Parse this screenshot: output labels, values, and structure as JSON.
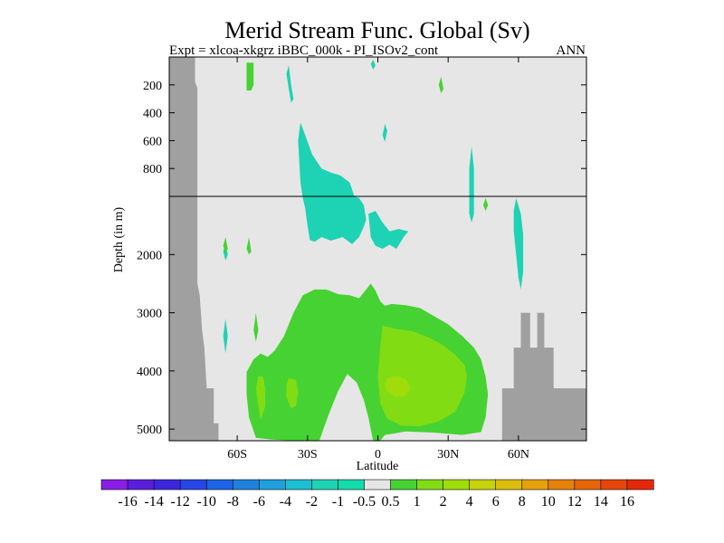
{
  "chart_data": {
    "type": "heatmap",
    "title": "Merid Stream Func. Global (Sv)",
    "subtitle_left": "Expt = xlcoa-xkgrz  iBBC_000k - PI_ISOv2_cont",
    "subtitle_right": "ANN",
    "xlabel": "Latitude",
    "ylabel": "Depth (in m)",
    "xlim": [
      -89,
      89
    ],
    "ylim_upper": [
      0,
      1000
    ],
    "ylim_lower": [
      1000,
      5200
    ],
    "x_ticks": [
      {
        "value": -60,
        "label": "60S"
      },
      {
        "value": -30,
        "label": "30S"
      },
      {
        "value": 0,
        "label": "0"
      },
      {
        "value": 30,
        "label": "30N"
      },
      {
        "value": 60,
        "label": "60N"
      }
    ],
    "y_ticks_upper": [
      {
        "value": 200,
        "label": "200"
      },
      {
        "value": 400,
        "label": "400"
      },
      {
        "value": 600,
        "label": "600"
      },
      {
        "value": 800,
        "label": "800"
      }
    ],
    "y_ticks_lower": [
      {
        "value": 2000,
        "label": "2000"
      },
      {
        "value": 3000,
        "label": "3000"
      },
      {
        "value": 4000,
        "label": "4000"
      },
      {
        "value": 5000,
        "label": "5000"
      }
    ],
    "background_color": "#e6e6e6",
    "land_color": "#a0a0a0",
    "colorbar": {
      "labels": [
        "-16",
        "-14",
        "-12",
        "-10",
        "-8",
        "-6",
        "-4",
        "-2",
        "-1",
        "-0.5",
        "0.5",
        "1",
        "2",
        "4",
        "6",
        "8",
        "10",
        "12",
        "14",
        "16"
      ],
      "colors": [
        "#8a1ee6",
        "#5a1edc",
        "#3c28dc",
        "#2846e6",
        "#1e64e6",
        "#1e82dc",
        "#1ea0dc",
        "#1ebed2",
        "#1ed2b4",
        "#14dcaa",
        "#e6e6e6",
        "#46d232",
        "#82dc14",
        "#a0dc0a",
        "#c8d20a",
        "#dcbe0a",
        "#e6a00a",
        "#e6820a",
        "#e6640a",
        "#e6460a",
        "#e6280a"
      ]
    },
    "regions": [
      {
        "value": -1.5,
        "color": "#1ed2b4",
        "points": [
          [
            -32,
            1030
          ],
          [
            -31,
            1200
          ],
          [
            -30,
            1500
          ],
          [
            -29,
            1750
          ],
          [
            -27,
            1780
          ],
          [
            -24,
            1700
          ],
          [
            -20,
            1760
          ],
          [
            -15,
            1700
          ],
          [
            -11,
            1820
          ],
          [
            -8,
            1700
          ],
          [
            -6,
            1520
          ],
          [
            -5,
            1400
          ],
          [
            -6,
            1150
          ],
          [
            -8,
            1030
          ],
          [
            -10,
            1000
          ],
          [
            -12,
            900
          ],
          [
            -16,
            850
          ],
          [
            -20,
            830
          ],
          [
            -24,
            800
          ],
          [
            -28,
            700
          ],
          [
            -31,
            560
          ],
          [
            -33,
            470
          ],
          [
            -34,
            600
          ],
          [
            -33,
            900
          ]
        ]
      },
      {
        "value": -1.5,
        "color": "#1ed2b4",
        "points": [
          [
            -4,
            1300
          ],
          [
            -3,
            1700
          ],
          [
            -1,
            1850
          ],
          [
            2,
            1900
          ],
          [
            5,
            1830
          ],
          [
            8,
            1900
          ],
          [
            11,
            1700
          ],
          [
            13,
            1600
          ],
          [
            9,
            1560
          ],
          [
            5,
            1600
          ],
          [
            2,
            1450
          ],
          [
            -1,
            1250
          ]
        ]
      },
      {
        "value": -1.5,
        "color": "#1ed2b4",
        "points": [
          [
            -38,
            60
          ],
          [
            -37,
            200
          ],
          [
            -36,
            300
          ],
          [
            -37,
            330
          ],
          [
            -38,
            230
          ],
          [
            -39,
            120
          ]
        ]
      },
      {
        "value": -1.5,
        "color": "#1ed2b4",
        "points": [
          [
            3,
            480
          ],
          [
            4,
            530
          ],
          [
            3,
            610
          ],
          [
            2,
            560
          ]
        ]
      },
      {
        "value": -1.5,
        "color": "#1ed2b4",
        "points": [
          [
            -2,
            20
          ],
          [
            -1,
            60
          ],
          [
            -2,
            90
          ],
          [
            -3,
            50
          ]
        ]
      },
      {
        "value": -1.5,
        "color": "#1ed2b4",
        "points": [
          [
            40,
            640
          ],
          [
            41,
            800
          ],
          [
            41,
            1000
          ],
          [
            41,
            1300
          ],
          [
            40,
            1450
          ],
          [
            39,
            1300
          ],
          [
            39,
            1000
          ],
          [
            39,
            800
          ]
        ]
      },
      {
        "value": -1.5,
        "color": "#1ed2b4",
        "points": [
          [
            59,
            1030
          ],
          [
            61,
            1300
          ],
          [
            62,
            1650
          ],
          [
            62,
            2300
          ],
          [
            61,
            2600
          ],
          [
            60,
            2400
          ],
          [
            59,
            2000
          ],
          [
            58,
            1600
          ],
          [
            58,
            1250
          ]
        ]
      },
      {
        "value": -1.5,
        "color": "#1ed2b4",
        "points": [
          [
            -65,
            3100
          ],
          [
            -64,
            3400
          ],
          [
            -65,
            3700
          ],
          [
            -66,
            3400
          ]
        ]
      },
      {
        "value": -1.5,
        "color": "#1ed2b4",
        "points": [
          [
            -65,
            1800
          ],
          [
            -64,
            2000
          ],
          [
            -65,
            2100
          ],
          [
            -66,
            1950
          ]
        ]
      },
      {
        "value": 0.75,
        "color": "#46d232",
        "points": [
          [
            -56,
            4020
          ],
          [
            -53,
            3800
          ],
          [
            -50,
            3700
          ],
          [
            -47,
            3760
          ],
          [
            -44,
            3650
          ],
          [
            -40,
            3400
          ],
          [
            -36,
            3000
          ],
          [
            -32,
            2700
          ],
          [
            -27,
            2600
          ],
          [
            -22,
            2600
          ],
          [
            -17,
            2680
          ],
          [
            -12,
            2700
          ],
          [
            -8,
            2750
          ],
          [
            -5,
            2600
          ],
          [
            -4,
            2550
          ],
          [
            -3,
            2500
          ],
          [
            -1,
            2620
          ],
          [
            1,
            2800
          ],
          [
            3,
            2880
          ],
          [
            6,
            2850
          ],
          [
            12,
            2870
          ],
          [
            18,
            2920
          ],
          [
            24,
            3060
          ],
          [
            30,
            3200
          ],
          [
            36,
            3400
          ],
          [
            41,
            3600
          ],
          [
            44,
            3800
          ],
          [
            46,
            4100
          ],
          [
            47,
            4400
          ],
          [
            46,
            4800
          ],
          [
            44,
            5050
          ],
          [
            36,
            5100
          ],
          [
            24,
            5060
          ],
          [
            12,
            5040
          ],
          [
            3,
            5100
          ],
          [
            1,
            5200
          ],
          [
            -2,
            5200
          ],
          [
            -4,
            4800
          ],
          [
            -6,
            4500
          ],
          [
            -9,
            4200
          ],
          [
            -13,
            4050
          ],
          [
            -17,
            4350
          ],
          [
            -21,
            4750
          ],
          [
            -25,
            5200
          ],
          [
            -35,
            5200
          ],
          [
            -45,
            5180
          ],
          [
            -52,
            5150
          ],
          [
            -55,
            4800
          ],
          [
            -56,
            4400
          ]
        ]
      },
      {
        "value": 1.5,
        "color": "#82dc14",
        "points": [
          [
            2,
            3220
          ],
          [
            8,
            3280
          ],
          [
            15,
            3320
          ],
          [
            22,
            3430
          ],
          [
            28,
            3560
          ],
          [
            33,
            3720
          ],
          [
            37,
            3900
          ],
          [
            38,
            4100
          ],
          [
            37,
            4380
          ],
          [
            33,
            4700
          ],
          [
            26,
            4870
          ],
          [
            18,
            4950
          ],
          [
            10,
            4940
          ],
          [
            4,
            4820
          ],
          [
            1,
            4550
          ],
          [
            0,
            4100
          ],
          [
            1,
            3600
          ]
        ]
      },
      {
        "value": 1.5,
        "color": "#82dc14",
        "points": [
          [
            -51,
            4090
          ],
          [
            -49,
            4100
          ],
          [
            -48,
            4300
          ],
          [
            -48,
            4600
          ],
          [
            -50,
            4850
          ],
          [
            -51,
            4600
          ],
          [
            -52,
            4300
          ]
        ]
      },
      {
        "value": 1.5,
        "color": "#82dc14",
        "points": [
          [
            -38,
            4120
          ],
          [
            -35,
            4150
          ],
          [
            -34,
            4380
          ],
          [
            -35,
            4600
          ],
          [
            -37,
            4650
          ],
          [
            -39,
            4450
          ],
          [
            -39,
            4250
          ]
        ]
      },
      {
        "value": 0.75,
        "color": "#46d232",
        "points": [
          [
            -56,
            40
          ],
          [
            -53,
            40
          ],
          [
            -53,
            200
          ],
          [
            -54,
            240
          ],
          [
            -56,
            240
          ]
        ]
      },
      {
        "value": 0.75,
        "color": "#46d232",
        "points": [
          [
            -65,
            1700
          ],
          [
            -64,
            1900
          ],
          [
            -65,
            1980
          ],
          [
            -66,
            1850
          ]
        ]
      },
      {
        "value": 0.75,
        "color": "#46d232",
        "points": [
          [
            -55,
            1700
          ],
          [
            -54,
            1950
          ],
          [
            -55,
            2000
          ],
          [
            -56,
            1900
          ]
        ]
      },
      {
        "value": 0.75,
        "color": "#46d232",
        "points": [
          [
            -52,
            3000
          ],
          [
            -51,
            3300
          ],
          [
            -52,
            3500
          ],
          [
            -53,
            3300
          ]
        ]
      },
      {
        "value": 0.75,
        "color": "#46d232",
        "points": [
          [
            27,
            140
          ],
          [
            28,
            230
          ],
          [
            27,
            260
          ],
          [
            26,
            200
          ]
        ]
      },
      {
        "value": 0.75,
        "color": "#46d232",
        "points": [
          [
            46,
            1030
          ],
          [
            47,
            1150
          ],
          [
            46,
            1250
          ],
          [
            45,
            1150
          ]
        ]
      },
      {
        "value": 2.5,
        "color": "#a0dc0a",
        "points": [
          [
            4,
            4120
          ],
          [
            8,
            4080
          ],
          [
            12,
            4150
          ],
          [
            14,
            4300
          ],
          [
            12,
            4420
          ],
          [
            8,
            4450
          ],
          [
            4,
            4350
          ],
          [
            3,
            4250
          ]
        ]
      }
    ],
    "land": [
      [
        [
          -89,
          0
        ],
        [
          -78,
          0
        ],
        [
          -78,
          180
        ],
        [
          -77,
          220
        ],
        [
          -77,
          2500
        ],
        [
          -76,
          2700
        ],
        [
          -75,
          3300
        ],
        [
          -74,
          3600
        ],
        [
          -73,
          4300
        ],
        [
          -70,
          4300
        ],
        [
          -70,
          4900
        ],
        [
          -68,
          4900
        ],
        [
          -68,
          5200
        ],
        [
          -89,
          5200
        ]
      ],
      [
        [
          89,
          4300
        ],
        [
          75,
          4300
        ],
        [
          75,
          3600
        ],
        [
          71,
          3600
        ],
        [
          71,
          3000
        ],
        [
          68,
          3000
        ],
        [
          68,
          3600
        ],
        [
          65,
          3600
        ],
        [
          65,
          3000
        ],
        [
          61,
          3000
        ],
        [
          61,
          3600
        ],
        [
          58,
          3600
        ],
        [
          58,
          4300
        ],
        [
          53,
          4300
        ],
        [
          53,
          5200
        ],
        [
          89,
          5200
        ]
      ]
    ]
  }
}
